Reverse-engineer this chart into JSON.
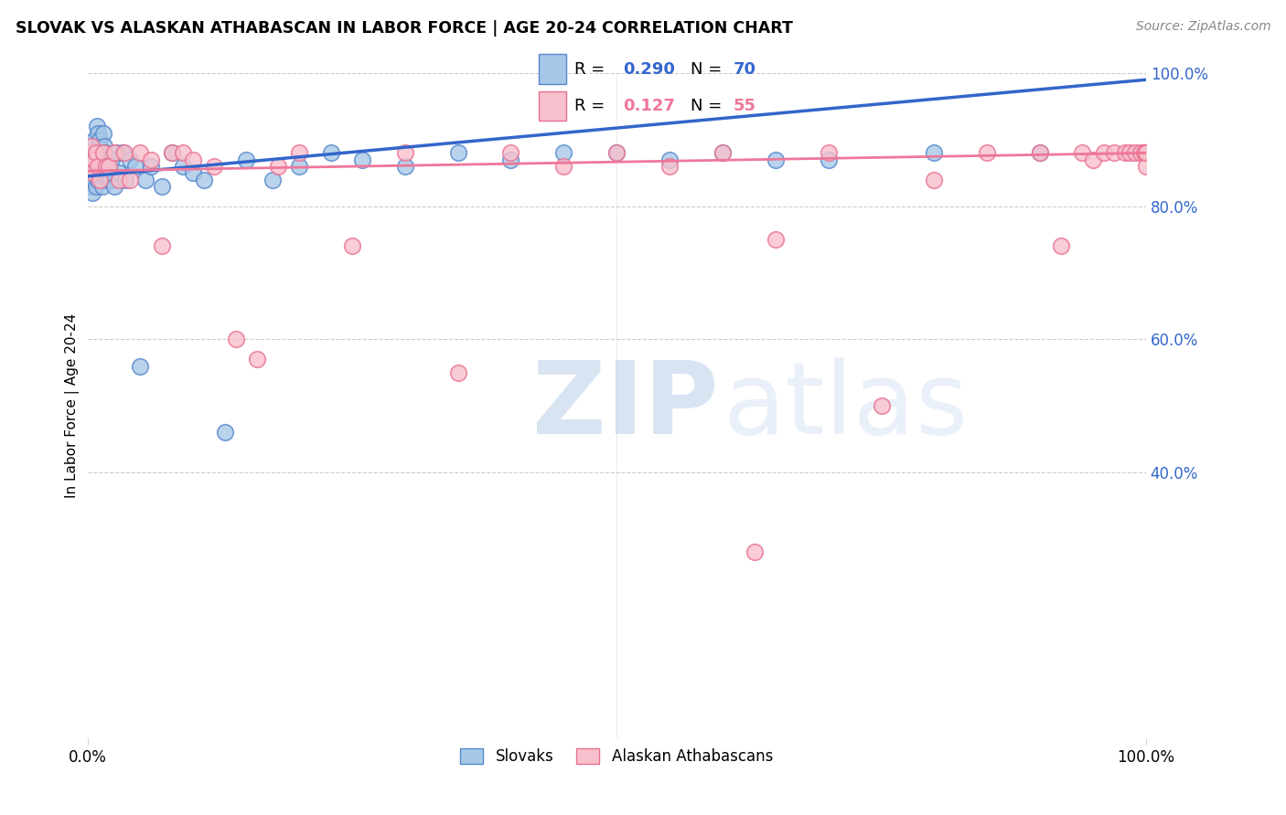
{
  "title": "SLOVAK VS ALASKAN ATHABASCAN IN LABOR FORCE | AGE 20-24 CORRELATION CHART",
  "source": "Source: ZipAtlas.com",
  "ylabel": "In Labor Force | Age 20-24",
  "xmin": 0.0,
  "xmax": 1.0,
  "ymin": 0.0,
  "ymax": 1.0,
  "slovak_color": "#a8c8e8",
  "slovak_edge_color": "#5588cc",
  "athabascan_color": "#f8c0cc",
  "athabascan_edge_color": "#e87090",
  "slovak_line_color": "#3366cc",
  "athabascan_line_color": "#ee7799",
  "legend_blue_color": "#3366cc",
  "legend_pink_color": "#ee7799",
  "right_tick_color": "#3366cc",
  "slovak_x": [
    0.002,
    0.003,
    0.003,
    0.004,
    0.004,
    0.005,
    0.005,
    0.005,
    0.006,
    0.006,
    0.007,
    0.007,
    0.008,
    0.008,
    0.009,
    0.009,
    0.01,
    0.01,
    0.01,
    0.011,
    0.011,
    0.012,
    0.012,
    0.013,
    0.013,
    0.014,
    0.014,
    0.015,
    0.015,
    0.016,
    0.016,
    0.017,
    0.018,
    0.019,
    0.02,
    0.021,
    0.022,
    0.023,
    0.025,
    0.027,
    0.03,
    0.033,
    0.036,
    0.04,
    0.045,
    0.05,
    0.055,
    0.06,
    0.07,
    0.08,
    0.09,
    0.1,
    0.11,
    0.13,
    0.15,
    0.175,
    0.2,
    0.23,
    0.26,
    0.3,
    0.35,
    0.4,
    0.45,
    0.5,
    0.55,
    0.6,
    0.65,
    0.7,
    0.8,
    0.9
  ],
  "slovak_y": [
    0.86,
    0.84,
    0.83,
    0.88,
    0.85,
    0.87,
    0.84,
    0.82,
    0.9,
    0.86,
    0.88,
    0.85,
    0.87,
    0.83,
    0.92,
    0.88,
    0.91,
    0.87,
    0.84,
    0.89,
    0.85,
    0.9,
    0.86,
    0.88,
    0.84,
    0.87,
    0.83,
    0.91,
    0.86,
    0.89,
    0.85,
    0.88,
    0.87,
    0.84,
    0.85,
    0.86,
    0.84,
    0.87,
    0.83,
    0.88,
    0.85,
    0.88,
    0.84,
    0.87,
    0.86,
    0.56,
    0.84,
    0.86,
    0.83,
    0.88,
    0.86,
    0.85,
    0.84,
    0.46,
    0.87,
    0.84,
    0.86,
    0.88,
    0.87,
    0.86,
    0.88,
    0.87,
    0.88,
    0.88,
    0.87,
    0.88,
    0.87,
    0.87,
    0.88,
    0.88
  ],
  "athabascan_x": [
    0.002,
    0.003,
    0.004,
    0.005,
    0.006,
    0.008,
    0.01,
    0.012,
    0.015,
    0.018,
    0.02,
    0.025,
    0.03,
    0.035,
    0.04,
    0.05,
    0.06,
    0.07,
    0.08,
    0.09,
    0.1,
    0.12,
    0.14,
    0.16,
    0.18,
    0.2,
    0.25,
    0.3,
    0.35,
    0.4,
    0.45,
    0.5,
    0.55,
    0.6,
    0.65,
    0.7,
    0.75,
    0.8,
    0.85,
    0.9,
    0.92,
    0.94,
    0.95,
    0.96,
    0.97,
    0.98,
    0.985,
    0.99,
    0.995,
    0.998,
    1.0,
    1.0,
    1.0,
    1.0,
    0.63
  ],
  "athabascan_y": [
    0.88,
    0.86,
    0.89,
    0.85,
    0.87,
    0.88,
    0.86,
    0.84,
    0.88,
    0.86,
    0.86,
    0.88,
    0.84,
    0.88,
    0.84,
    0.88,
    0.87,
    0.74,
    0.88,
    0.88,
    0.87,
    0.86,
    0.6,
    0.57,
    0.86,
    0.88,
    0.74,
    0.88,
    0.55,
    0.88,
    0.86,
    0.88,
    0.86,
    0.88,
    0.75,
    0.88,
    0.5,
    0.84,
    0.88,
    0.88,
    0.74,
    0.88,
    0.87,
    0.88,
    0.88,
    0.88,
    0.88,
    0.88,
    0.88,
    0.88,
    0.88,
    0.88,
    0.86,
    0.88,
    0.28
  ],
  "Slovak_line_start_y": 0.845,
  "Slovak_line_end_y": 0.99,
  "Athabascan_line_start_y": 0.853,
  "Athabascan_line_end_y": 0.88
}
